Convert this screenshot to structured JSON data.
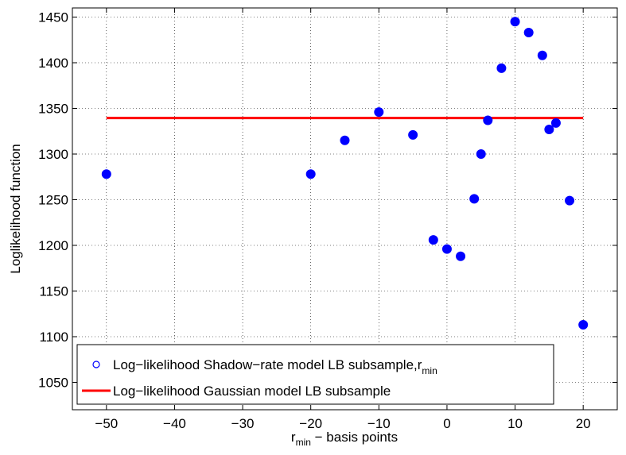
{
  "chart_data": {
    "type": "scatter",
    "xlabel_main": "r",
    "xlabel_sub": "min",
    "xlabel_rest": " − basis points",
    "ylabel": "Loglikelihood function",
    "xlim": [
      -55,
      25
    ],
    "ylim": [
      1020,
      1460
    ],
    "xticks": [
      -50,
      -40,
      -30,
      -20,
      -10,
      0,
      10,
      20
    ],
    "xtick_labels": [
      "−50",
      "−40",
      "−30",
      "−20",
      "−10",
      "0",
      "10",
      "20"
    ],
    "yticks": [
      1050,
      1100,
      1150,
      1200,
      1250,
      1300,
      1350,
      1400,
      1450
    ],
    "ytick_labels": [
      "1050",
      "1100",
      "1150",
      "1200",
      "1250",
      "1300",
      "1350",
      "1400",
      "1450"
    ],
    "grid": true,
    "legend_position": "bottom-left",
    "series": [
      {
        "name": "Log−likelihood Shadow−rate model LB subsample,r",
        "name_sub": "min",
        "kind": "scatter",
        "color": "#0000ff",
        "points": [
          [
            -50,
            1278
          ],
          [
            -20,
            1278
          ],
          [
            -15,
            1315
          ],
          [
            -10,
            1346
          ],
          [
            -5,
            1321
          ],
          [
            -2,
            1206
          ],
          [
            0,
            1196
          ],
          [
            2,
            1188
          ],
          [
            4,
            1251
          ],
          [
            5,
            1300
          ],
          [
            6,
            1337
          ],
          [
            8,
            1394
          ],
          [
            10,
            1445
          ],
          [
            12,
            1433
          ],
          [
            14,
            1408
          ],
          [
            15,
            1327
          ],
          [
            16,
            1334
          ],
          [
            18,
            1249
          ],
          [
            20,
            1113
          ]
        ]
      },
      {
        "name": "Log−likelihood Gaussian model LB subsample",
        "kind": "line",
        "color": "#ff0000",
        "x": [
          -50,
          20
        ],
        "y": [
          1339.5,
          1339.5
        ]
      }
    ]
  }
}
